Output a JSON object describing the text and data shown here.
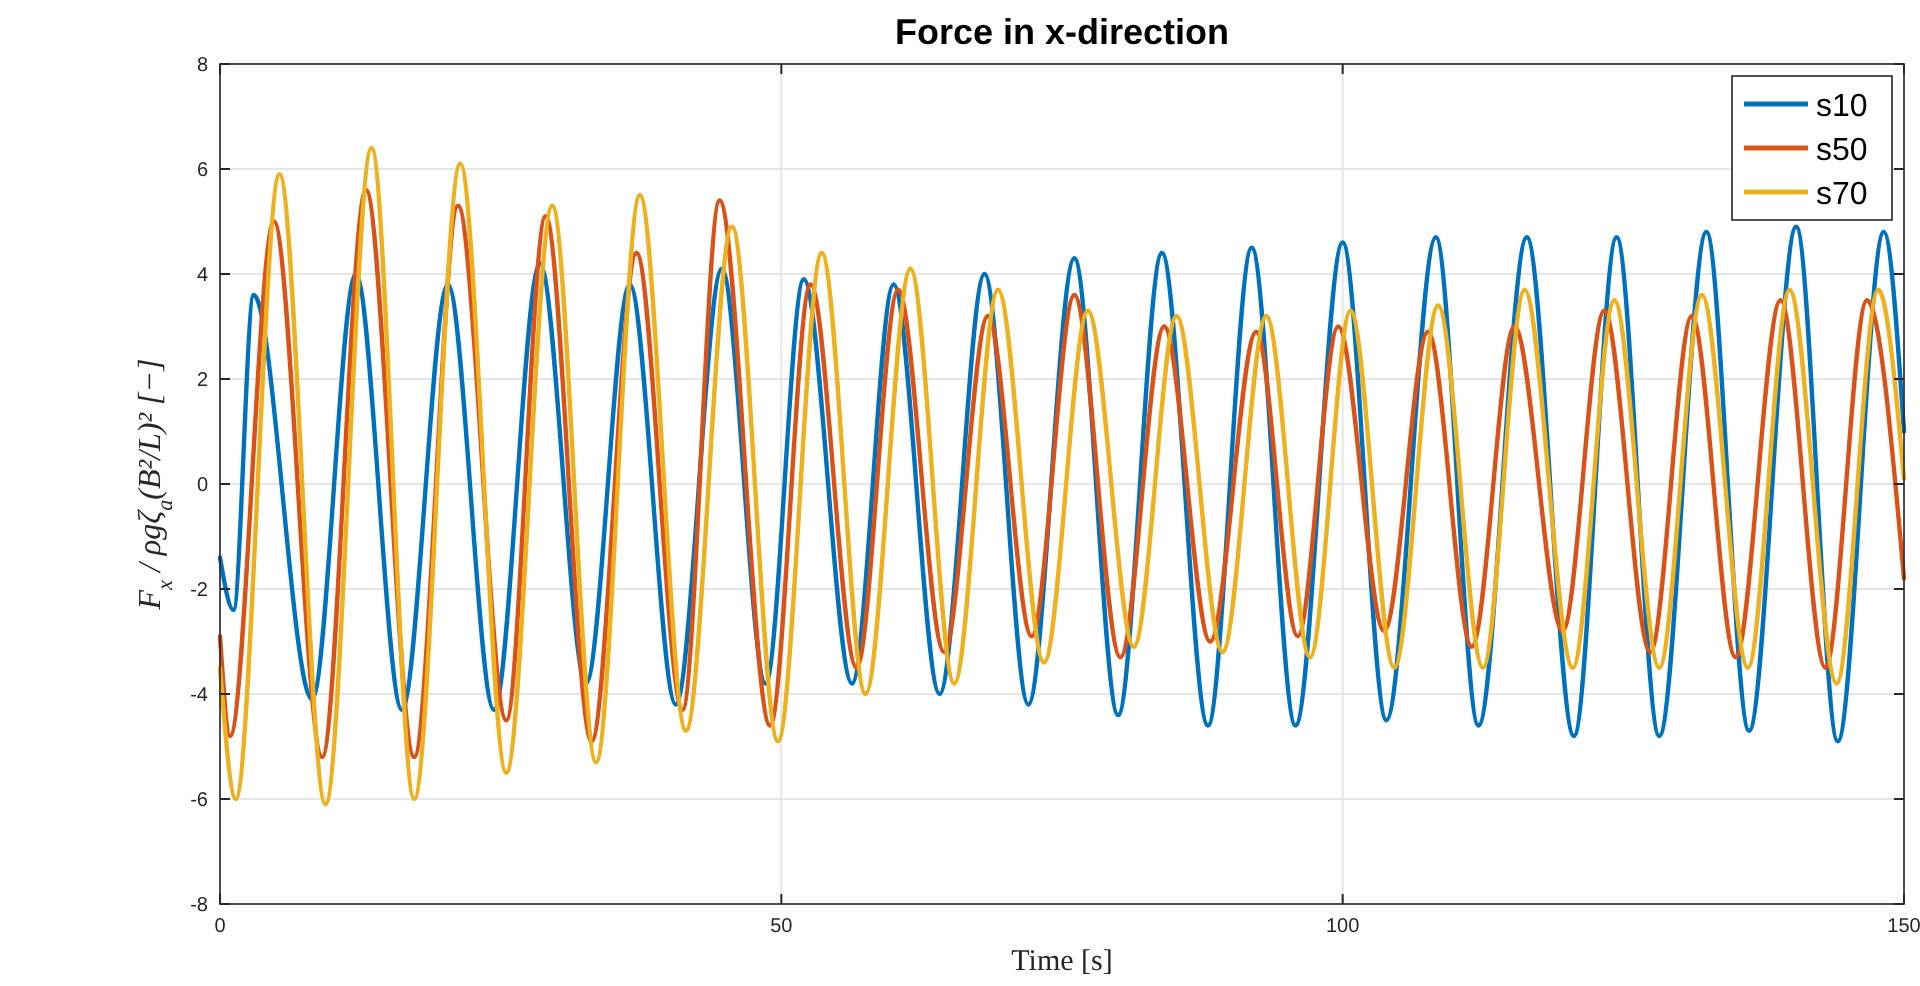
{
  "chart_data": {
    "type": "line",
    "title": "Force in x-direction",
    "xlabel": "Time [s]",
    "ylabel": "F$_{x}$ / ρgζ$_{a}$(B²/L)²  [−]",
    "xlim": [
      0,
      150
    ],
    "xticks": [
      0,
      50,
      100,
      150
    ],
    "ylim": [
      -8,
      8
    ],
    "yticks": [
      -8,
      -6,
      -4,
      -2,
      0,
      2,
      4,
      6,
      8
    ],
    "grid": true,
    "legend": "top right",
    "line_style": "solid",
    "marker": "none",
    "series": [
      {
        "name": "s10",
        "color": "#0072bd",
        "x": [
          0,
          1.2,
          3,
          8.2,
          12.1,
          16.2,
          20.3,
          24.4,
          28.5,
          32.6,
          36.5,
          40.6,
          44.7,
          48.6,
          52,
          56.3,
          60,
          64.1,
          68.1,
          72,
          76.1,
          80,
          83.9,
          88,
          91.9,
          95.8,
          100,
          103.9,
          108.3,
          112.1,
          116.4,
          120.6,
          124.4,
          128.2,
          132.4,
          136.2,
          140.4,
          144.1,
          148.2,
          150
        ],
        "values": [
          -1.4,
          -2.4,
          3.6,
          -4.1,
          4,
          -4.3,
          3.8,
          -4.3,
          4.2,
          -3.8,
          3.8,
          -4.2,
          4.1,
          -3.8,
          3.9,
          -3.8,
          3.8,
          -4,
          4,
          -4.2,
          4.3,
          -4.4,
          4.4,
          -4.6,
          4.5,
          -4.6,
          4.6,
          -4.5,
          4.7,
          -4.6,
          4.7,
          -4.8,
          4.7,
          -4.8,
          4.8,
          -4.7,
          4.9,
          -4.9,
          4.8,
          1
        ]
      },
      {
        "name": "s50",
        "color": "#d95319",
        "x": [
          0,
          0.9,
          4.8,
          9.1,
          13,
          17.3,
          21.2,
          25.5,
          29,
          33.1,
          37.1,
          41.2,
          44.5,
          49,
          52.6,
          56.7,
          60.4,
          64.5,
          68.4,
          72.3,
          76.1,
          80.2,
          84.1,
          88.2,
          92.3,
          96,
          99.6,
          103.7,
          107.6,
          111.5,
          115.3,
          119.6,
          123.3,
          127.4,
          131.1,
          135,
          139,
          143,
          146.7,
          150
        ],
        "values": [
          -2.9,
          -4.8,
          5,
          -5.2,
          5.6,
          -5.2,
          5.3,
          -4.5,
          5.1,
          -4.9,
          4.4,
          -4.3,
          5.4,
          -4.6,
          3.8,
          -3.5,
          3.7,
          -3.2,
          3.2,
          -2.9,
          3.6,
          -3.3,
          3,
          -3,
          2.9,
          -2.9,
          3,
          -2.8,
          2.9,
          -3.1,
          3,
          -2.8,
          3.3,
          -3.2,
          3.2,
          -3.3,
          3.5,
          -3.5,
          3.5,
          -1.8
        ]
      },
      {
        "name": "s70",
        "color": "#edb120",
        "x": [
          0,
          1.4,
          5.3,
          9.4,
          13.5,
          17.3,
          21.4,
          25.5,
          29.6,
          33.5,
          37.4,
          41.5,
          45.6,
          49.7,
          53.6,
          57.5,
          61.5,
          65.4,
          69.3,
          73.4,
          77.3,
          81.4,
          85.2,
          89.3,
          93.2,
          97.1,
          100.7,
          104.6,
          108.5,
          112.5,
          116.2,
          120.5,
          124.2,
          128.2,
          132,
          136.1,
          139.8,
          144,
          147.7,
          150
        ],
        "values": [
          -3.5,
          -6,
          5.9,
          -6.1,
          6.4,
          -6,
          6.1,
          -5.5,
          5.3,
          -5.3,
          5.5,
          -4.7,
          4.9,
          -4.9,
          4.4,
          -4,
          4.1,
          -3.8,
          3.7,
          -3.4,
          3.3,
          -3.1,
          3.2,
          -3.2,
          3.2,
          -3.3,
          3.3,
          -3.5,
          3.4,
          -3.5,
          3.7,
          -3.5,
          3.5,
          -3.5,
          3.6,
          -3.5,
          3.7,
          -3.8,
          3.7,
          0.1
        ]
      }
    ]
  }
}
